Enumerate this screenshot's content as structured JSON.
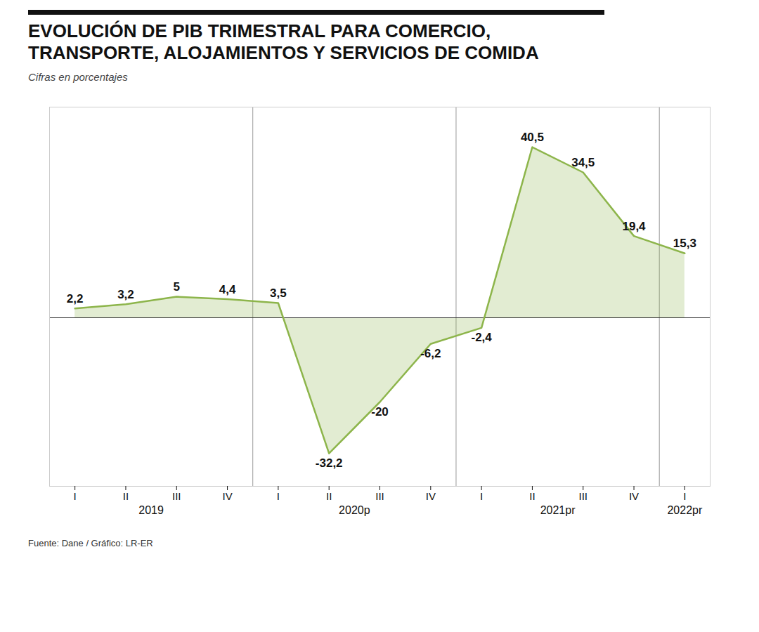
{
  "chart_data": {
    "type": "area",
    "title": "EVOLUCIÓN DE PIB TRIMESTRAL PARA COMERCIO, TRANSPORTE, ALOJAMIENTOS Y SERVICIOS DE COMIDA",
    "subtitle": "Cifras en porcentajes",
    "source": "Fuente: Dane / Gráfico: LR-ER",
    "categories": [
      "I",
      "II",
      "III",
      "IV",
      "I",
      "II",
      "III",
      "IV",
      "I",
      "II",
      "III",
      "IV",
      "I"
    ],
    "category_years": [
      "2019",
      "2019",
      "2019",
      "2019",
      "2020p",
      "2020p",
      "2020p",
      "2020p",
      "2021pr",
      "2021pr",
      "2021pr",
      "2021pr",
      "2022pr"
    ],
    "values": [
      2.2,
      3.2,
      5.0,
      4.4,
      3.5,
      -32.2,
      -20.0,
      -6.2,
      -2.4,
      40.5,
      34.5,
      19.4,
      15.3
    ],
    "value_labels": [
      "2,2",
      "3,2",
      "5",
      "4,4",
      "3,5",
      "-32,2",
      "-20",
      "-6,2",
      "-2,4",
      "40,5",
      "34,5",
      "19,4",
      "15,3"
    ],
    "color": "#8db54b",
    "ylim": [
      -40,
      50
    ],
    "data_labels": true,
    "tick_labels": "x",
    "grid": false
  }
}
